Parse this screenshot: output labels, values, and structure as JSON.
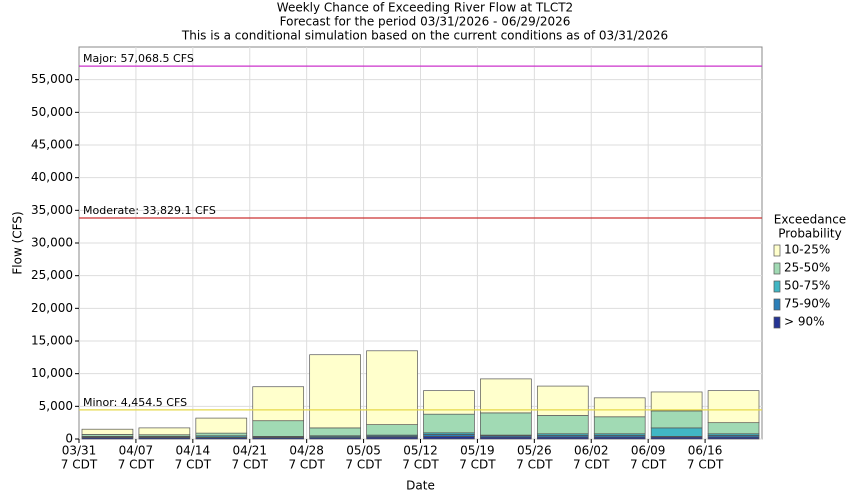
{
  "chart_data": {
    "type": "stacked_bar",
    "title": [
      "Weekly Chance of Exceeding River Flow at TLCT2",
      "Forecast for the period 03/31/2026 - 06/29/2026",
      "This is a conditional simulation based on the current conditions as of 03/31/2026"
    ],
    "x_label": "Date",
    "y_label": "Flow (CFS)",
    "categories": [
      [
        "03/31",
        "7 CDT"
      ],
      [
        "04/07",
        "7 CDT"
      ],
      [
        "04/14",
        "7 CDT"
      ],
      [
        "04/21",
        "7 CDT"
      ],
      [
        "04/28",
        "7 CDT"
      ],
      [
        "05/05",
        "7 CDT"
      ],
      [
        "05/12",
        "7 CDT"
      ],
      [
        "05/19",
        "7 CDT"
      ],
      [
        "05/26",
        "7 CDT"
      ],
      [
        "06/02",
        "7 CDT"
      ],
      [
        "06/09",
        "7 CDT"
      ],
      [
        "06/16",
        "7 CDT"
      ]
    ],
    "ylim": [
      0,
      60000
    ],
    "yticks": [
      0,
      {
        "value": 5000,
        "label": "5,000"
      },
      {
        "value": 10000,
        "label": "10,000"
      },
      {
        "value": 15000,
        "label": "15,000"
      },
      {
        "value": 20000,
        "label": "20,000"
      },
      {
        "value": 25000,
        "label": "25,000"
      },
      {
        "value": 30000,
        "label": "30,000"
      },
      {
        "value": 35000,
        "label": "35,000"
      },
      {
        "value": 40000,
        "label": "40,000"
      },
      {
        "value": 45000,
        "label": "45,000"
      },
      {
        "value": 50000,
        "label": "50,000"
      },
      {
        "value": 55000,
        "label": "55,000"
      }
    ],
    "grid": true,
    "legend_title": [
      "Exceedance",
      "Probability"
    ],
    "series": [
      {
        "name": "> 90%",
        "color": "#253494",
        "values": [
          200,
          200,
          200,
          200,
          200,
          300,
          400,
          300,
          300,
          300,
          300,
          300
        ]
      },
      {
        "name": "75-90%",
        "color": "#2c7fb8",
        "values": [
          100,
          100,
          100,
          100,
          150,
          150,
          300,
          200,
          250,
          250,
          100,
          250
        ]
      },
      {
        "name": "50-75%",
        "color": "#41b6c4",
        "values": [
          100,
          100,
          200,
          100,
          150,
          150,
          250,
          100,
          250,
          250,
          1300,
          250
        ]
      },
      {
        "name": "25-50%",
        "color": "#a1dab4",
        "values": [
          300,
          250,
          400,
          2400,
          1200,
          1600,
          2850,
          3400,
          2800,
          2600,
          2600,
          1700
        ]
      },
      {
        "name": "10-25%",
        "color": "#ffffcc",
        "values": [
          800,
          1050,
          2300,
          5200,
          11200,
          11300,
          3600,
          5200,
          4500,
          2900,
          2900,
          4900
        ]
      }
    ],
    "thresholds": [
      {
        "label": "Major: 57,068.5 CFS",
        "value": 57068.5,
        "color": "#cc33cc"
      },
      {
        "label": "Moderate: 33,829.1 CFS",
        "value": 33829.1,
        "color": "#cc3333"
      },
      {
        "label": "Minor: 4,454.5 CFS",
        "value": 4454.5,
        "color": "#e6d84a"
      }
    ]
  }
}
